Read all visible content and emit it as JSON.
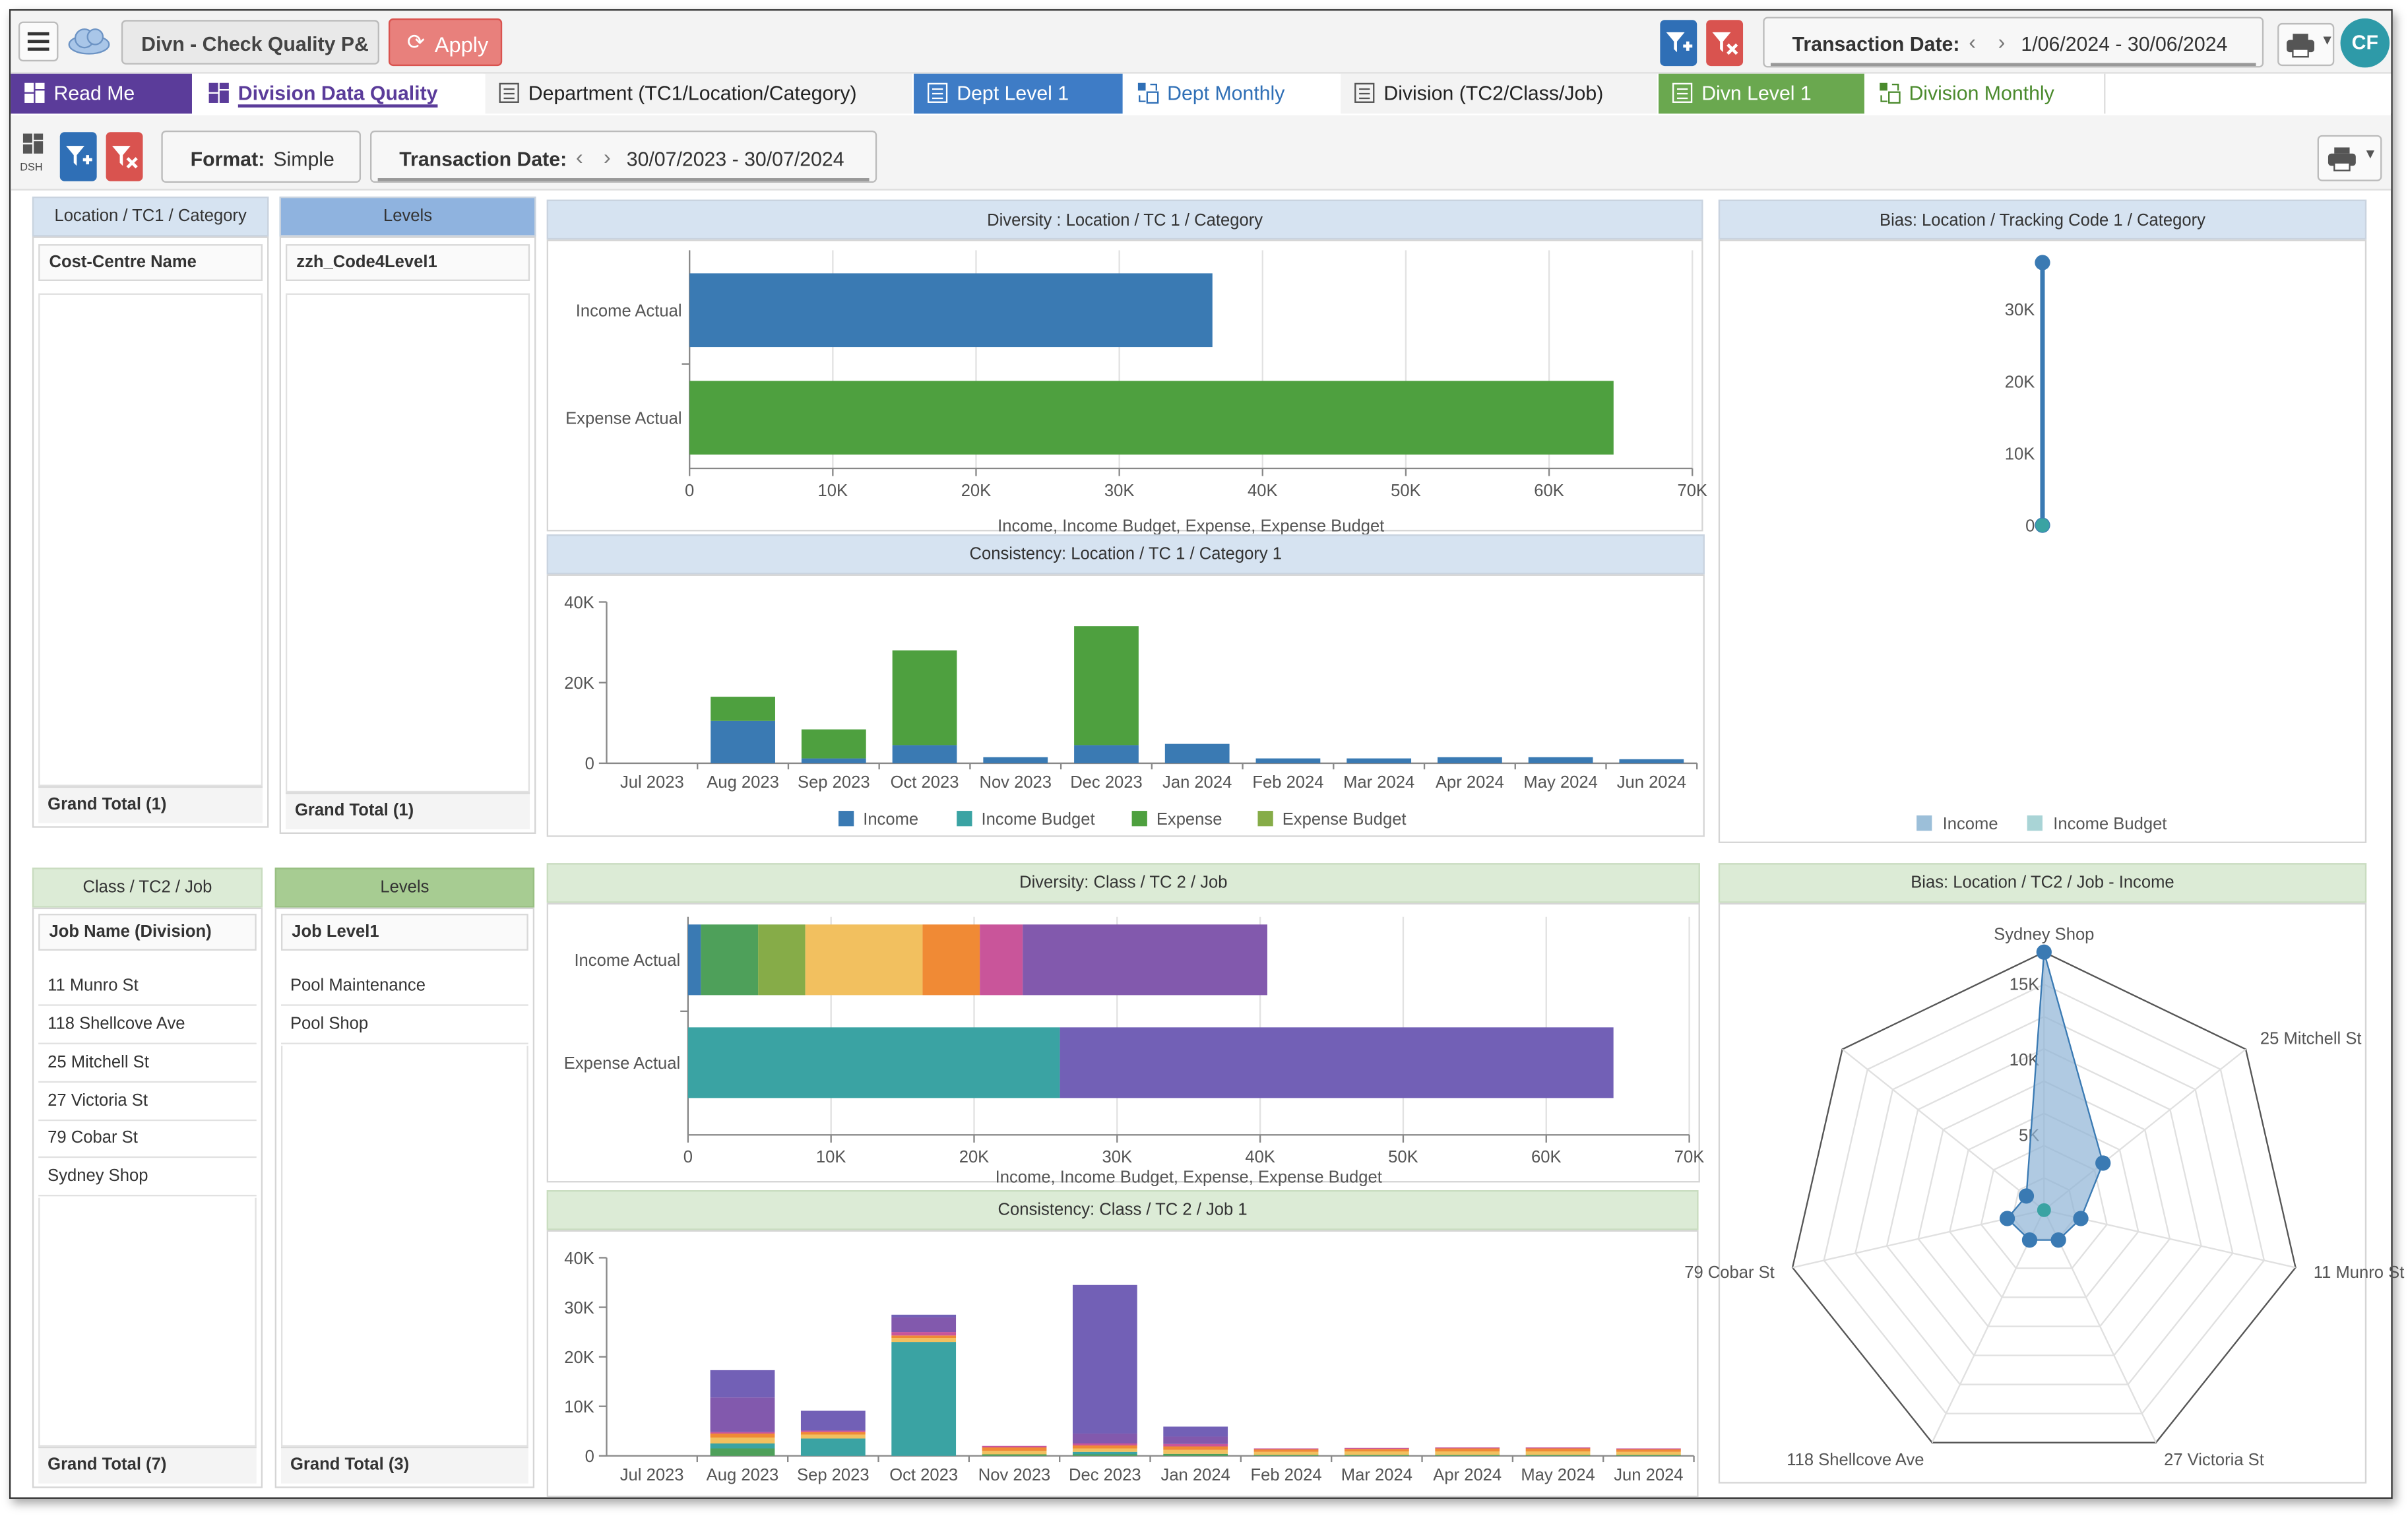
{
  "topbar": {
    "report_title": "Divn - Check Quality P&",
    "apply_label": "Apply",
    "date_label": "Transaction Date:",
    "date_range": "1/06/2024 - 30/06/2024",
    "user_initials": "CF"
  },
  "tabs": [
    {
      "label": "Read Me",
      "icon": "dashboard-icon",
      "bg": "#5b3c9a",
      "fg": "#ffffff"
    },
    {
      "label": "Division Data Quality",
      "icon": "dashboard-icon",
      "bg": "#ffffff",
      "fg": "#5b3c9a",
      "active": true
    },
    {
      "label": "Department (TC1/Location/Category)",
      "icon": "table-icon",
      "bg": "#f3f3f3",
      "fg": "#222222"
    },
    {
      "label": "Dept Level 1",
      "icon": "table-icon",
      "bg": "#3e7cc6",
      "fg": "#ffffff"
    },
    {
      "label": "Dept Monthly",
      "icon": "pivot-icon",
      "bg": "#ffffff",
      "fg": "#2f6fb6"
    },
    {
      "label": "Division (TC2/Class/Job)",
      "icon": "table-icon",
      "bg": "#f3f3f3",
      "fg": "#222222"
    },
    {
      "label": "Divn Level 1",
      "icon": "table-icon",
      "bg": "#6aa84f",
      "fg": "#ffffff"
    },
    {
      "label": "Division Monthly",
      "icon": "pivot-icon",
      "bg": "#ffffff",
      "fg": "#4a8a2c"
    }
  ],
  "toolbar2": {
    "dsh_label": "DSH",
    "format_label": "Format:",
    "format_value": "Simple",
    "date_label": "Transaction Date:",
    "date_range": "30/07/2023 - 30/07/2024"
  },
  "loc_table": {
    "header": "Location / TC1 / Category",
    "col_header": "Cost-Centre Name",
    "rows": [],
    "grand_total": "Grand Total (1)"
  },
  "loc_levels": {
    "header": "Levels",
    "col_header": "zzh_Code4Level1",
    "rows": [],
    "grand_total": "Grand Total (1)"
  },
  "class_table": {
    "header": "Class / TC2 / Job",
    "col_header": "Job Name (Division)",
    "rows": [
      "11 Munro St",
      "118 Shellcove Ave",
      "25 Mitchell St",
      "27 Victoria St",
      "79 Cobar St",
      "Sydney Shop"
    ],
    "grand_total": "Grand Total (7)"
  },
  "class_levels": {
    "header": "Levels",
    "col_header": "Job Level1",
    "rows": [
      "Pool Maintenance",
      "Pool Shop"
    ],
    "grand_total": "Grand Total (3)"
  },
  "colors": {
    "income": "#3a7ab3",
    "income_budget": "#3aa3a3",
    "expense": "#4ea03f",
    "expense_budget": "#86ac48",
    "light_blue_head": "#d6e3f1",
    "light_green_head": "#dcebd6",
    "levels_blue": "#8fb3df",
    "levels_green": "#a7cc92"
  },
  "chart_data": [
    {
      "type": "bar",
      "orientation": "horizontal",
      "title": "Diversity : Location / TC 1 / Category",
      "categories": [
        "Income Actual",
        "Expense Actual"
      ],
      "values": [
        36500,
        64500
      ],
      "colors": [
        "#3a7ab3",
        "#4ea03f"
      ],
      "xlabel": "Income, Income Budget, Expense, Expense Budget",
      "xlim": [
        0,
        70000
      ],
      "xticks": [
        "0",
        "10K",
        "20K",
        "30K",
        "40K",
        "50K",
        "60K",
        "70K"
      ],
      "grid": true
    },
    {
      "type": "bar",
      "stacked": true,
      "title": "Consistency: Location / TC 1 / Category 1",
      "categories": [
        "Jul 2023",
        "Aug 2023",
        "Sep 2023",
        "Oct 2023",
        "Nov 2023",
        "Dec 2023",
        "Jan 2024",
        "Feb 2024",
        "Mar 2024",
        "Apr 2024",
        "May 2024",
        "Jun 2024"
      ],
      "series": [
        {
          "name": "Income",
          "color": "#3a7ab3",
          "values": [
            0,
            10500,
            1200,
            4500,
            1500,
            4500,
            4800,
            1200,
            1200,
            1500,
            1500,
            1000
          ]
        },
        {
          "name": "Income Budget",
          "color": "#3aa3a3",
          "values": [
            0,
            0,
            0,
            0,
            0,
            0,
            0,
            0,
            0,
            0,
            0,
            0
          ]
        },
        {
          "name": "Expense",
          "color": "#4ea03f",
          "values": [
            0,
            6000,
            7200,
            23500,
            0,
            29500,
            0,
            0,
            0,
            0,
            0,
            0
          ]
        },
        {
          "name": "Expense Budget",
          "color": "#86ac48",
          "values": [
            0,
            0,
            0,
            0,
            0,
            0,
            0,
            0,
            0,
            0,
            0,
            0
          ]
        }
      ],
      "ylim": [
        0,
        40000
      ],
      "yticks": [
        "0",
        "20K",
        "40K"
      ],
      "legend": "bottom"
    },
    {
      "type": "line",
      "title": "Bias: Location / Tracking Code 1 / Category",
      "categories": [
        "",
        ""
      ],
      "series": [
        {
          "name": "Income",
          "color": "#9cbfd9",
          "values": [
            36500,
            0
          ]
        },
        {
          "name": "Income Budget",
          "color": "#a9d4d6",
          "values": [
            0,
            0
          ]
        }
      ],
      "ylim": [
        0,
        36500
      ],
      "yticks": [
        "0",
        "10K",
        "20K",
        "30K"
      ],
      "legend": "bottom"
    },
    {
      "type": "bar",
      "orientation": "horizontal",
      "stacked": true,
      "title": "Diversity: Class / TC 2 / Job",
      "categories": [
        "Income Actual",
        "Expense Actual"
      ],
      "series": [
        {
          "values": [
            900,
            0
          ],
          "color": "#3a7ab3"
        },
        {
          "values": [
            4000,
            0
          ],
          "color": "#4ea05a"
        },
        {
          "values": [
            3300,
            0
          ],
          "color": "#86ac48"
        },
        {
          "values": [
            8200,
            0
          ],
          "color": "#f2c05f"
        },
        {
          "values": [
            4000,
            0
          ],
          "color": "#f08a35"
        },
        {
          "values": [
            3000,
            0
          ],
          "color": "#c9559a"
        },
        {
          "values": [
            17100,
            0
          ],
          "color": "#8259ad"
        },
        {
          "values": [
            0,
            26000
          ],
          "color": "#3aa3a3"
        },
        {
          "values": [
            0,
            38700
          ],
          "color": "#7260b6"
        }
      ],
      "xlabel": "Income, Income Budget, Expense, Expense Budget",
      "xlim": [
        0,
        70000
      ],
      "xticks": [
        "0",
        "10K",
        "20K",
        "30K",
        "40K",
        "50K",
        "60K",
        "70K"
      ],
      "grid": true
    },
    {
      "type": "bar",
      "stacked": true,
      "title": "Consistency: Class / TC 2 / Job 1",
      "categories": [
        "Jul 2023",
        "Aug 2023",
        "Sep 2023",
        "Oct 2023",
        "Nov 2023",
        "Dec 2023",
        "Jan 2024",
        "Feb 2024",
        "Mar 2024",
        "Apr 2024",
        "May 2024",
        "Jun 2024"
      ],
      "series": [
        {
          "color": "#4ea05a",
          "values": [
            0,
            1500,
            0,
            0,
            300,
            300,
            400,
            200,
            200,
            200,
            200,
            200
          ]
        },
        {
          "color": "#3aa3a3",
          "values": [
            0,
            1000,
            3500,
            23000,
            0,
            500,
            0,
            0,
            0,
            0,
            0,
            0
          ]
        },
        {
          "color": "#f2c05f",
          "values": [
            0,
            1200,
            800,
            800,
            700,
            700,
            800,
            600,
            700,
            700,
            700,
            600
          ]
        },
        {
          "color": "#f08a35",
          "values": [
            0,
            800,
            500,
            500,
            700,
            600,
            700,
            500,
            500,
            600,
            600,
            500
          ]
        },
        {
          "color": "#c9559a",
          "values": [
            0,
            300,
            300,
            700,
            300,
            400,
            500,
            200,
            200,
            200,
            200,
            200
          ]
        },
        {
          "color": "#8259ad",
          "values": [
            0,
            7000,
            0,
            3000,
            0,
            2000,
            1500,
            0,
            0,
            0,
            0,
            0
          ]
        },
        {
          "color": "#7260b6",
          "values": [
            0,
            5500,
            4000,
            500,
            0,
            30000,
            2000,
            0,
            0,
            0,
            0,
            0
          ]
        }
      ],
      "ylim": [
        0,
        40000
      ],
      "yticks": [
        "0",
        "10K",
        "20K",
        "30K",
        "40K"
      ]
    },
    {
      "type": "radar",
      "title": "Bias: Location / TC2 / Job - Income",
      "categories": [
        "Sydney Shop",
        "25 Mitchell St",
        "11 Munro St",
        "27 Victoria St",
        "118 Shellcove Ave",
        "79 Cobar St",
        ""
      ],
      "series": [
        {
          "name": "Income",
          "color": "#3a7ab3",
          "values": [
            17100,
            5000,
            2500,
            2200,
            2200,
            2500,
            1500
          ]
        },
        {
          "name": "Income Budget",
          "color": "#3aa3a3",
          "values": [
            0,
            0,
            0,
            0,
            0,
            0,
            0
          ]
        }
      ],
      "rlim": [
        0,
        17100
      ],
      "rticks": [
        "5K",
        "10K",
        "15K"
      ]
    }
  ]
}
